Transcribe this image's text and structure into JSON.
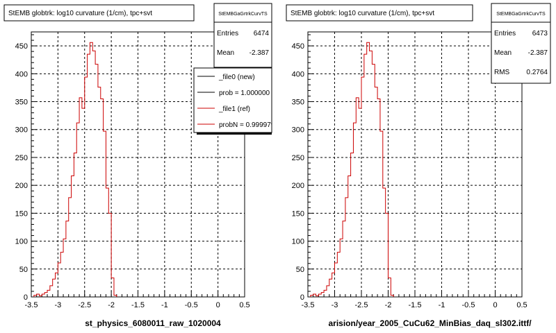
{
  "footer_text": "",
  "chart_data": [
    {
      "type": "histogram",
      "title": "StEMB globtrk: log10 curvature (1/cm), tpc+svt",
      "xlabel": "st_physics_6080011_raw_1020004",
      "ylabel": "",
      "xlim": [
        -3.5,
        0.5
      ],
      "ylim": [
        0,
        475
      ],
      "x_ticks": [
        "-3.5",
        "-3",
        "-2.5",
        "-2",
        "-1.5",
        "-1",
        "-0.5",
        "0",
        "0.5"
      ],
      "y_ticks": [
        "0",
        "50",
        "100",
        "150",
        "200",
        "250",
        "300",
        "350",
        "400",
        "450"
      ],
      "grid": true,
      "stats_box": {
        "name": "StEMBGaGrtrkCurvTS",
        "rows": [
          {
            "label": "Entries",
            "value": "6474"
          },
          {
            "label": "Mean",
            "value": "-2.387"
          }
        ]
      },
      "legend": {
        "placement": "top-right",
        "entries": [
          {
            "label": "_file0 (new)",
            "color": "#000000"
          },
          {
            "label": "prob = 1.000000",
            "color": "#000000"
          },
          {
            "label": "_file1 (ref)",
            "color": "#cc0000"
          },
          {
            "label": "probN = 0.999979",
            "color": "#cc0000"
          }
        ]
      },
      "bin_width": 0.05,
      "bin_start": -3.45,
      "series": [
        {
          "color": "#cc0000",
          "values": [
            3,
            5,
            2,
            5,
            8,
            12,
            20,
            32,
            43,
            61,
            80,
            104,
            136,
            178,
            217,
            258,
            312,
            357,
            338,
            394,
            435,
            456,
            441,
            417,
            376,
            355,
            297,
            195,
            150,
            34,
            3
          ]
        }
      ]
    },
    {
      "type": "histogram",
      "title": "StEMB globtrk: log10 curvature (1/cm), tpc+svt",
      "xlabel": "arision/year_2005_CuCu62_MinBias_daq_sl302.ittf/",
      "ylabel": "",
      "xlim": [
        -3.5,
        0.5
      ],
      "ylim": [
        0,
        475
      ],
      "x_ticks": [
        "-3.5",
        "-3",
        "-2.5",
        "-2",
        "-1.5",
        "-1",
        "-0.5",
        "0",
        "0.5"
      ],
      "y_ticks": [
        "0",
        "50",
        "100",
        "150",
        "200",
        "250",
        "300",
        "350",
        "400",
        "450"
      ],
      "grid": true,
      "stats_box": {
        "name": "StEMBGaGrtrkCurvTS",
        "rows": [
          {
            "label": "Entries",
            "value": "6473"
          },
          {
            "label": "Mean",
            "value": "-2.387"
          },
          {
            "label": "RMS",
            "value": "0.2764"
          }
        ]
      },
      "bin_width": 0.05,
      "bin_start": -3.45,
      "series": [
        {
          "color": "#cc0000",
          "values": [
            3,
            5,
            2,
            5,
            8,
            12,
            20,
            32,
            43,
            61,
            80,
            104,
            136,
            178,
            217,
            258,
            312,
            357,
            338,
            394,
            435,
            456,
            441,
            417,
            376,
            355,
            297,
            195,
            150,
            34,
            3
          ]
        }
      ]
    }
  ]
}
